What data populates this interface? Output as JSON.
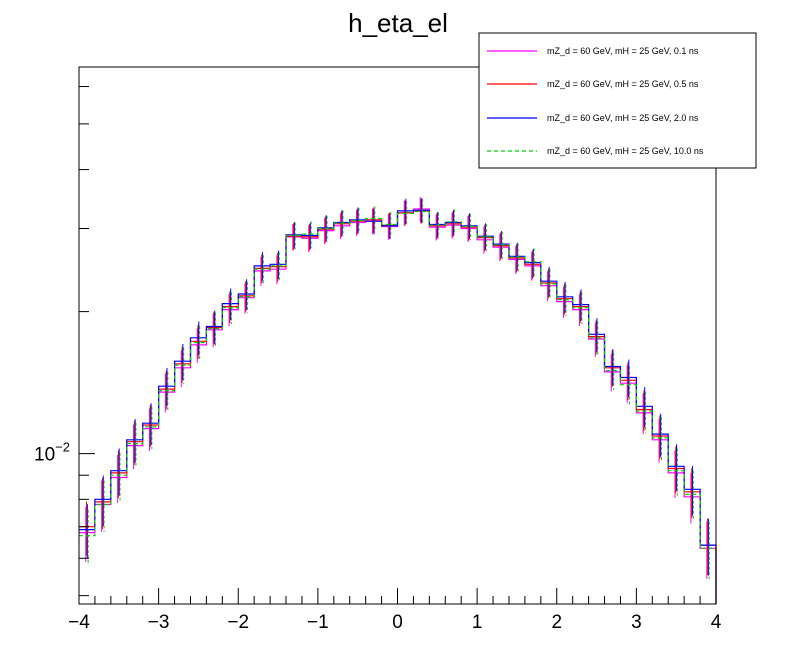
{
  "chart_data": {
    "type": "line",
    "title": "h_eta_el",
    "xlabel": "",
    "ylabel": "",
    "xlim": [
      -4,
      4
    ],
    "ylim": [
      0.0048,
      0.066
    ],
    "y_scale": "log",
    "grid": false,
    "legend_placement": "top-right",
    "x_tick_labels": [
      "−4",
      "−3",
      "−2",
      "−1",
      "0",
      "1",
      "2",
      "3",
      "4"
    ],
    "y_tick_label": {
      "base": "10",
      "exponent": "−2"
    },
    "bin_edges": [
      -4.0,
      -3.8,
      -3.6,
      -3.4,
      -3.2,
      -3.0,
      -2.8,
      -2.6,
      -2.4,
      -2.2,
      -2.0,
      -1.8,
      -1.6,
      -1.4,
      -1.2,
      -1.0,
      -0.8,
      -0.6,
      -0.4,
      -0.2,
      0.0,
      0.2,
      0.4,
      0.6,
      0.8,
      1.0,
      1.2,
      1.4,
      1.6,
      1.8,
      2.0,
      2.2,
      2.4,
      2.6,
      2.8,
      3.0,
      3.2,
      3.4,
      3.6,
      3.8,
      4.0
    ],
    "series": [
      {
        "name": "mZ_d = 60 GeV, mH = 25 GeV, 0.1 ns",
        "color": "#ff00ff",
        "style": "solid",
        "values": [
          0.0068,
          0.0078,
          0.0089,
          0.0104,
          0.0113,
          0.0135,
          0.0152,
          0.017,
          0.0183,
          0.0202,
          0.0214,
          0.0244,
          0.0246,
          0.0288,
          0.0286,
          0.0297,
          0.0304,
          0.0309,
          0.0311,
          0.0303,
          0.0324,
          0.033,
          0.0302,
          0.0305,
          0.03,
          0.0284,
          0.0274,
          0.0258,
          0.025,
          0.0227,
          0.021,
          0.0202,
          0.0175,
          0.0149,
          0.0141,
          0.0122,
          0.0107,
          0.0091,
          0.0081,
          0.0063
        ]
      },
      {
        "name": "mZ_d = 60 GeV, mH = 25 GeV, 0.5 ns",
        "color": "#ff0000",
        "style": "solid",
        "values": [
          0.007,
          0.0079,
          0.0091,
          0.0106,
          0.0115,
          0.0137,
          0.0155,
          0.0173,
          0.0185,
          0.0205,
          0.0216,
          0.0247,
          0.0249,
          0.0289,
          0.0288,
          0.0299,
          0.0307,
          0.0311,
          0.0313,
          0.0305,
          0.0324,
          0.0327,
          0.0304,
          0.0307,
          0.0302,
          0.0287,
          0.0276,
          0.026,
          0.0252,
          0.023,
          0.0213,
          0.0205,
          0.0177,
          0.0152,
          0.0143,
          0.0124,
          0.0109,
          0.0093,
          0.0083,
          0.0064
        ]
      },
      {
        "name": "mZ_d = 60 GeV, mH = 25 GeV, 2.0 ns",
        "color": "#0000ff",
        "style": "solid",
        "values": [
          0.0069,
          0.008,
          0.0092,
          0.0107,
          0.0116,
          0.0139,
          0.0157,
          0.0176,
          0.0186,
          0.0208,
          0.0218,
          0.025,
          0.0252,
          0.0291,
          0.029,
          0.0301,
          0.0309,
          0.0313,
          0.0311,
          0.0304,
          0.0327,
          0.0328,
          0.0306,
          0.0309,
          0.0304,
          0.0289,
          0.0278,
          0.0262,
          0.0254,
          0.0232,
          0.0215,
          0.0207,
          0.0179,
          0.0153,
          0.0145,
          0.0126,
          0.011,
          0.0094,
          0.0084,
          0.0064
        ]
      },
      {
        "name": "mZ_d = 60 GeV, mH = 25 GeV, 10.0 ns",
        "color": "#00cc00",
        "style": "dashed",
        "values": [
          0.0067,
          0.0078,
          0.009,
          0.0105,
          0.0114,
          0.0136,
          0.0154,
          0.0172,
          0.0184,
          0.0204,
          0.0215,
          0.0246,
          0.025,
          0.029,
          0.0292,
          0.03,
          0.0308,
          0.0312,
          0.0315,
          0.0306,
          0.0323,
          0.0326,
          0.0305,
          0.031,
          0.0303,
          0.0288,
          0.0277,
          0.0261,
          0.0255,
          0.0229,
          0.0212,
          0.0204,
          0.0176,
          0.015,
          0.014,
          0.0123,
          0.0108,
          0.0092,
          0.0082,
          0.0063
        ]
      }
    ]
  }
}
